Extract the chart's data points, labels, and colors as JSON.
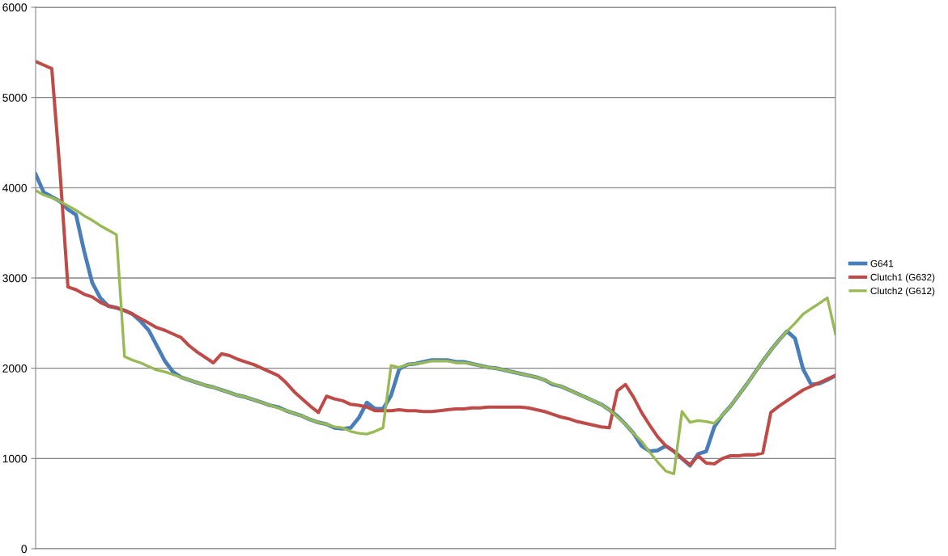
{
  "chart_data": {
    "type": "line",
    "categories": [
      null,
      null,
      null,
      null,
      null,
      null,
      null,
      null,
      null,
      null,
      null,
      null,
      null,
      null,
      null,
      null,
      null,
      null,
      null,
      null,
      null,
      null,
      null,
      null,
      null,
      null,
      null,
      null,
      null,
      null,
      null,
      null,
      null,
      null,
      null,
      null,
      null,
      null,
      null,
      null,
      null,
      null,
      null,
      null,
      null,
      null,
      null,
      null,
      null,
      null,
      null,
      null,
      null,
      null,
      null,
      null,
      null,
      null,
      null,
      null,
      null,
      null,
      null,
      null,
      null,
      null,
      null,
      null,
      null,
      null,
      null,
      null,
      null,
      null,
      null,
      null,
      null,
      null,
      null,
      null,
      null,
      null,
      null,
      null,
      null,
      null,
      null,
      null,
      null,
      null,
      null,
      null,
      null,
      null,
      null,
      null,
      null,
      null,
      null,
      null
    ],
    "series": [
      {
        "name": "G641",
        "color": "#4a7ebb",
        "values": [
          4150,
          3950,
          3900,
          3850,
          3760,
          3700,
          3300,
          2950,
          2780,
          2690,
          2670,
          2640,
          2600,
          2520,
          2420,
          2250,
          2080,
          1960,
          1900,
          1870,
          1840,
          1810,
          1790,
          1760,
          1730,
          1700,
          1680,
          1650,
          1620,
          1590,
          1570,
          1530,
          1500,
          1470,
          1430,
          1400,
          1380,
          1340,
          1330,
          1340,
          1450,
          1620,
          1550,
          1550,
          1700,
          1990,
          2040,
          2050,
          2070,
          2090,
          2090,
          2090,
          2070,
          2070,
          2050,
          2030,
          2010,
          2000,
          1980,
          1960,
          1940,
          1920,
          1900,
          1870,
          1820,
          1800,
          1760,
          1720,
          1680,
          1640,
          1600,
          1540,
          1470,
          1380,
          1280,
          1140,
          1080,
          1090,
          1140,
          1080,
          1000,
          920,
          1050,
          1080,
          1350,
          1480,
          1580,
          1700,
          1820,
          1950,
          2080,
          2200,
          2310,
          2410,
          2330,
          1990,
          1820,
          1830,
          1870,
          1920
        ]
      },
      {
        "name": "Clutch1 (G632)",
        "color": "#be4b48",
        "values": [
          5400,
          5360,
          5320,
          4200,
          2900,
          2870,
          2820,
          2790,
          2730,
          2690,
          2670,
          2640,
          2600,
          2550,
          2500,
          2450,
          2420,
          2380,
          2340,
          2250,
          2180,
          2120,
          2060,
          2160,
          2140,
          2100,
          2070,
          2040,
          2000,
          1960,
          1920,
          1840,
          1740,
          1660,
          1580,
          1510,
          1690,
          1660,
          1640,
          1600,
          1590,
          1570,
          1530,
          1530,
          1530,
          1540,
          1530,
          1530,
          1520,
          1520,
          1530,
          1540,
          1550,
          1550,
          1560,
          1560,
          1570,
          1570,
          1570,
          1570,
          1570,
          1560,
          1540,
          1520,
          1490,
          1460,
          1440,
          1410,
          1390,
          1370,
          1350,
          1340,
          1750,
          1820,
          1680,
          1510,
          1370,
          1240,
          1140,
          1080,
          1000,
          930,
          1030,
          950,
          940,
          1000,
          1030,
          1030,
          1040,
          1040,
          1060,
          1510,
          1580,
          1640,
          1700,
          1760,
          1800,
          1840,
          1880,
          1920
        ]
      },
      {
        "name": "Clutch2 (G612)",
        "color": "#98b954",
        "values": [
          3970,
          3920,
          3890,
          3850,
          3800,
          3750,
          3690,
          3640,
          3580,
          3530,
          3480,
          2130,
          2090,
          2060,
          2020,
          1980,
          1960,
          1930,
          1900,
          1870,
          1840,
          1810,
          1790,
          1760,
          1730,
          1700,
          1680,
          1650,
          1620,
          1590,
          1560,
          1530,
          1500,
          1470,
          1430,
          1400,
          1380,
          1350,
          1340,
          1300,
          1280,
          1270,
          1300,
          1340,
          2030,
          2010,
          2040,
          2050,
          2060,
          2080,
          2080,
          2080,
          2060,
          2060,
          2050,
          2030,
          2010,
          2000,
          1980,
          1960,
          1940,
          1920,
          1900,
          1870,
          1830,
          1800,
          1760,
          1720,
          1680,
          1640,
          1600,
          1540,
          1460,
          1380,
          1280,
          1190,
          1070,
          960,
          860,
          830,
          1520,
          1400,
          1420,
          1410,
          1390,
          1480,
          1580,
          1700,
          1820,
          1950,
          2080,
          2200,
          2310,
          2410,
          2500,
          2600,
          2660,
          2720,
          2780,
          2380
        ]
      }
    ],
    "ylim": [
      0,
      6000
    ],
    "yticks": [
      0,
      1000,
      2000,
      3000,
      4000,
      5000,
      6000
    ],
    "grid": "y",
    "legend": "right",
    "tick_labels": "y",
    "marker": "none",
    "line_style": "solid"
  }
}
